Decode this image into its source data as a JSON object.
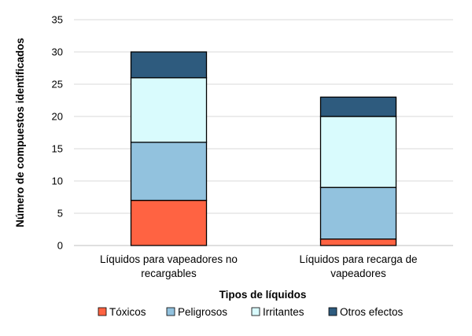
{
  "chart_data": {
    "type": "bar",
    "stacked": true,
    "title": "",
    "xlabel": "Tipos de líquidos",
    "ylabel": "Número de compuestos identificados",
    "ylim": [
      0,
      35
    ],
    "yticks": [
      0,
      5,
      10,
      15,
      20,
      25,
      30,
      35
    ],
    "grid": true,
    "legend_position": "bottom",
    "categories": [
      [
        "Líquidos para vapeadores no",
        "recargables"
      ],
      [
        "Líquidos para recarga de",
        "vapeadores"
      ]
    ],
    "series": [
      {
        "name": "Tóxicos",
        "color": "#ff6342",
        "values": [
          7,
          1
        ]
      },
      {
        "name": "Peligrosos",
        "color": "#92c2de",
        "values": [
          9,
          8
        ]
      },
      {
        "name": "Irritantes",
        "color": "#d9fbfd",
        "values": [
          10,
          11
        ]
      },
      {
        "name": "Otros efectos",
        "color": "#2e5b7e",
        "values": [
          4,
          3
        ]
      }
    ]
  }
}
